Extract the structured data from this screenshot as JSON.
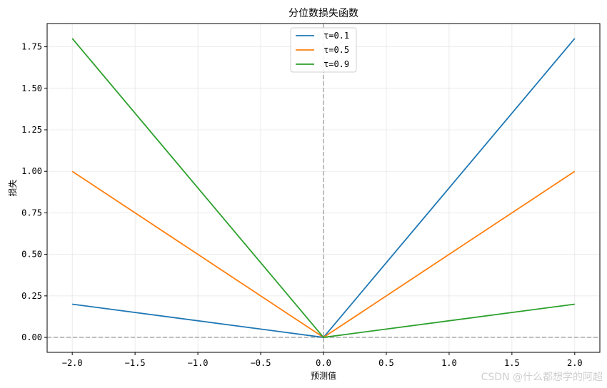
{
  "chart_data": {
    "type": "line",
    "title": "分位数损失函数",
    "xlabel": "预测值",
    "ylabel": "损失",
    "xlim": [
      -2.2,
      2.2
    ],
    "ylim": [
      -0.09,
      1.89
    ],
    "xticks": [
      -2.0,
      -1.5,
      -1.0,
      -0.5,
      0.0,
      0.5,
      1.0,
      1.5,
      2.0
    ],
    "xtick_labels": [
      "−2.0",
      "−1.5",
      "−1.0",
      "−0.5",
      "0.0",
      "0.5",
      "1.0",
      "1.5",
      "2.0"
    ],
    "yticks": [
      0.0,
      0.25,
      0.5,
      0.75,
      1.0,
      1.25,
      1.5,
      1.75
    ],
    "ytick_labels": [
      "0.00",
      "0.25",
      "0.50",
      "0.75",
      "1.00",
      "1.25",
      "1.50",
      "1.75"
    ],
    "grid": true,
    "legend_position": "top-center",
    "reference_lines": {
      "x": 0,
      "y": 0,
      "color": "#aaaaaa",
      "style": "dashed"
    },
    "x": [
      -2.0,
      0.0,
      2.0
    ],
    "series": [
      {
        "name": "τ=0.1",
        "color": "#1f77b4",
        "values": [
          0.2,
          0.0,
          1.8
        ]
      },
      {
        "name": "τ=0.5",
        "color": "#ff7f0e",
        "values": [
          1.0,
          0.0,
          1.0
        ]
      },
      {
        "name": "τ=0.9",
        "color": "#2ca02c",
        "values": [
          1.8,
          0.0,
          0.2
        ]
      }
    ]
  },
  "watermark": "CSDN @什么都想学的阿超"
}
